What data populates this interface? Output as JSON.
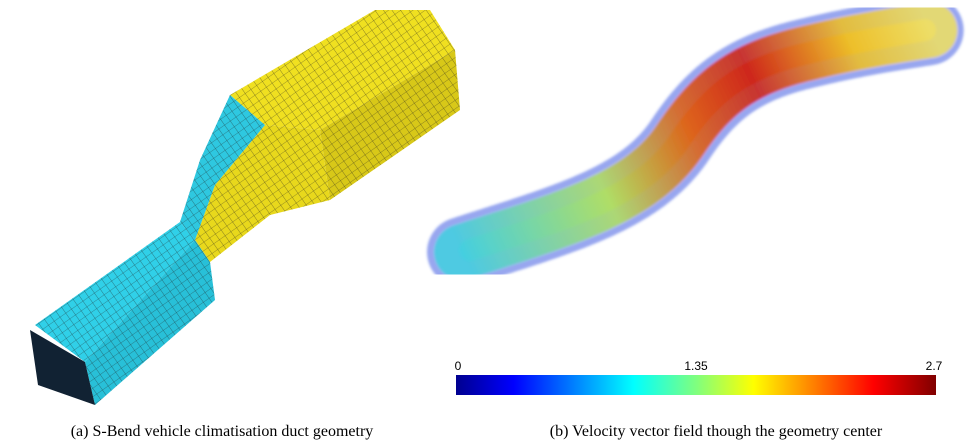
{
  "figures": [
    {
      "caption": "(a) S-Bend vehicle climatisation duct geometry"
    },
    {
      "caption": "(b) Velocity vector field though the geometry center",
      "colorbar": {
        "min_label": "0",
        "mid_label": "1.35",
        "max_label": "2.7"
      }
    }
  ]
}
